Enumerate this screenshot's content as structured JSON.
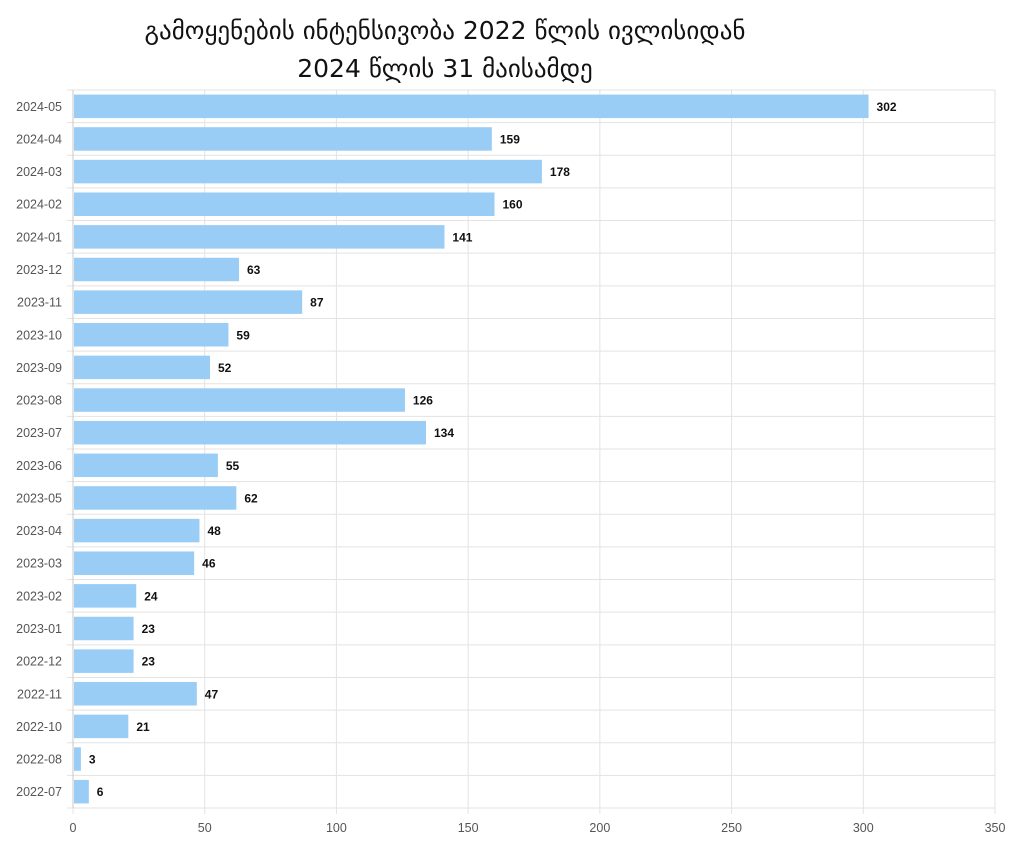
{
  "chart_data": {
    "type": "bar",
    "orientation": "horizontal",
    "title": "გამოყენების ინტენსივობა 2022 წლის ივლისიდან 2024 წლის 31 მაისამდე",
    "title_lines": [
      "გამოყენების ინტენსივობა 2022 წლის ივლისიდან",
      "2024 წლის 31 მაისამდე"
    ],
    "categories": [
      "2024-05",
      "2024-04",
      "2024-03",
      "2024-02",
      "2024-01",
      "2023-12",
      "2023-11",
      "2023-10",
      "2023-09",
      "2023-08",
      "2023-07",
      "2023-06",
      "2023-05",
      "2023-04",
      "2023-03",
      "2023-02",
      "2023-01",
      "2022-12",
      "2022-11",
      "2022-10",
      "2022-08",
      "2022-07"
    ],
    "values": [
      302,
      159,
      178,
      160,
      141,
      63,
      87,
      59,
      52,
      126,
      134,
      55,
      62,
      48,
      46,
      24,
      23,
      23,
      47,
      21,
      3,
      6
    ],
    "xlim": [
      0,
      350
    ],
    "x_ticks": [
      0,
      50,
      100,
      150,
      200,
      250,
      300,
      350
    ],
    "grid": true,
    "data_labels": true,
    "xlabel": "",
    "ylabel": "",
    "colors": {
      "bar": "#99cdf5",
      "grid": "#e3e3e3",
      "axis": "#c8c8c8"
    }
  }
}
